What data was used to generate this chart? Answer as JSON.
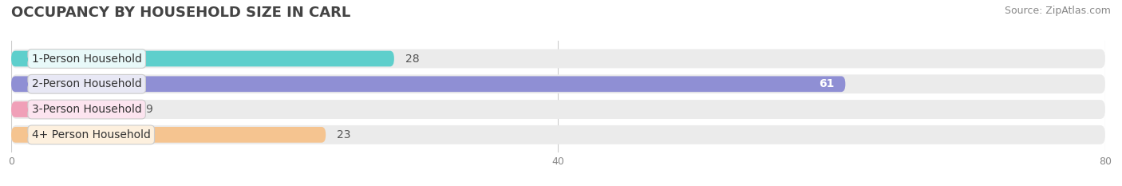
{
  "title": "OCCUPANCY BY HOUSEHOLD SIZE IN CARL",
  "source": "Source: ZipAtlas.com",
  "categories": [
    "1-Person Household",
    "2-Person Household",
    "3-Person Household",
    "4+ Person Household"
  ],
  "values": [
    28,
    61,
    9,
    23
  ],
  "bar_colors": [
    "#5ecfcc",
    "#8f8fd4",
    "#f0a0b8",
    "#f5c490"
  ],
  "label_bg_colors": [
    "#e8f9f9",
    "#e8e8f5",
    "#fce4ef",
    "#fdf0de"
  ],
  "dot_colors": [
    "#5ecfcc",
    "#8f8fd4",
    "#f0a0b8",
    "#f5c490"
  ],
  "row_bg_color": "#ebebeb",
  "xlim": [
    0,
    80
  ],
  "xticks": [
    0,
    40,
    80
  ],
  "title_fontsize": 13,
  "source_fontsize": 9,
  "bar_label_fontsize": 10,
  "category_fontsize": 10,
  "background_color": "#ffffff",
  "inside_label_threshold": 55
}
